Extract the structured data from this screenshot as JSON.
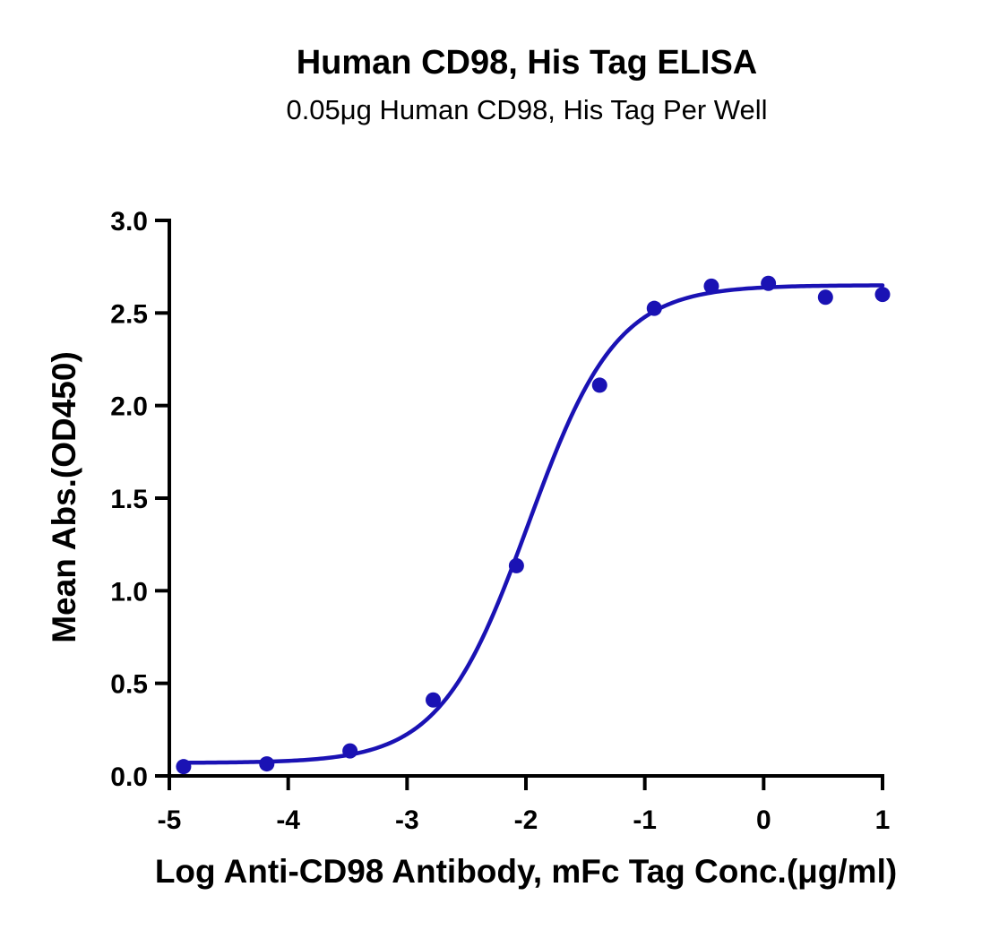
{
  "chart_data": {
    "type": "scatter",
    "title": "Human CD98, His Tag ELISA",
    "subtitle": "0.05μg Human CD98, His Tag Per Well",
    "xlabel": "Log Anti-CD98 Antibody, mFc Tag Conc.(μg/ml)",
    "ylabel": "Mean Abs.(OD450)",
    "xlim": [
      -5,
      1
    ],
    "ylim": [
      0,
      3
    ],
    "xticks": [
      -5,
      -4,
      -3,
      -2,
      -1,
      0,
      1
    ],
    "xtick_labels": [
      "-5",
      "-4",
      "-3",
      "-2",
      "-1",
      "0",
      "1"
    ],
    "yticks": [
      0,
      0.5,
      1,
      1.5,
      2,
      2.5,
      3
    ],
    "ytick_labels": [
      "0.0",
      "0.5",
      "1.0",
      "1.5",
      "2.0",
      "2.5",
      "3.0"
    ],
    "grid": false,
    "color": "#1a12b4",
    "series": [
      {
        "points": [
          {
            "x": -4.88,
            "y": 0.05
          },
          {
            "x": -4.18,
            "y": 0.065
          },
          {
            "x": -3.48,
            "y": 0.135
          },
          {
            "x": -2.78,
            "y": 0.41
          },
          {
            "x": -2.08,
            "y": 1.135
          },
          {
            "x": -1.38,
            "y": 2.11
          },
          {
            "x": -0.92,
            "y": 2.525
          },
          {
            "x": -0.44,
            "y": 2.645
          },
          {
            "x": 0.04,
            "y": 2.66
          },
          {
            "x": 0.52,
            "y": 2.585
          },
          {
            "x": 1.0,
            "y": 2.6
          }
        ]
      }
    ],
    "fit": {
      "type": "4PL",
      "bottom": 0.07,
      "top": 2.65,
      "log_ec50": -1.98,
      "hill_slope": 1.17,
      "x_range": [
        -4.88,
        1.0
      ]
    }
  }
}
